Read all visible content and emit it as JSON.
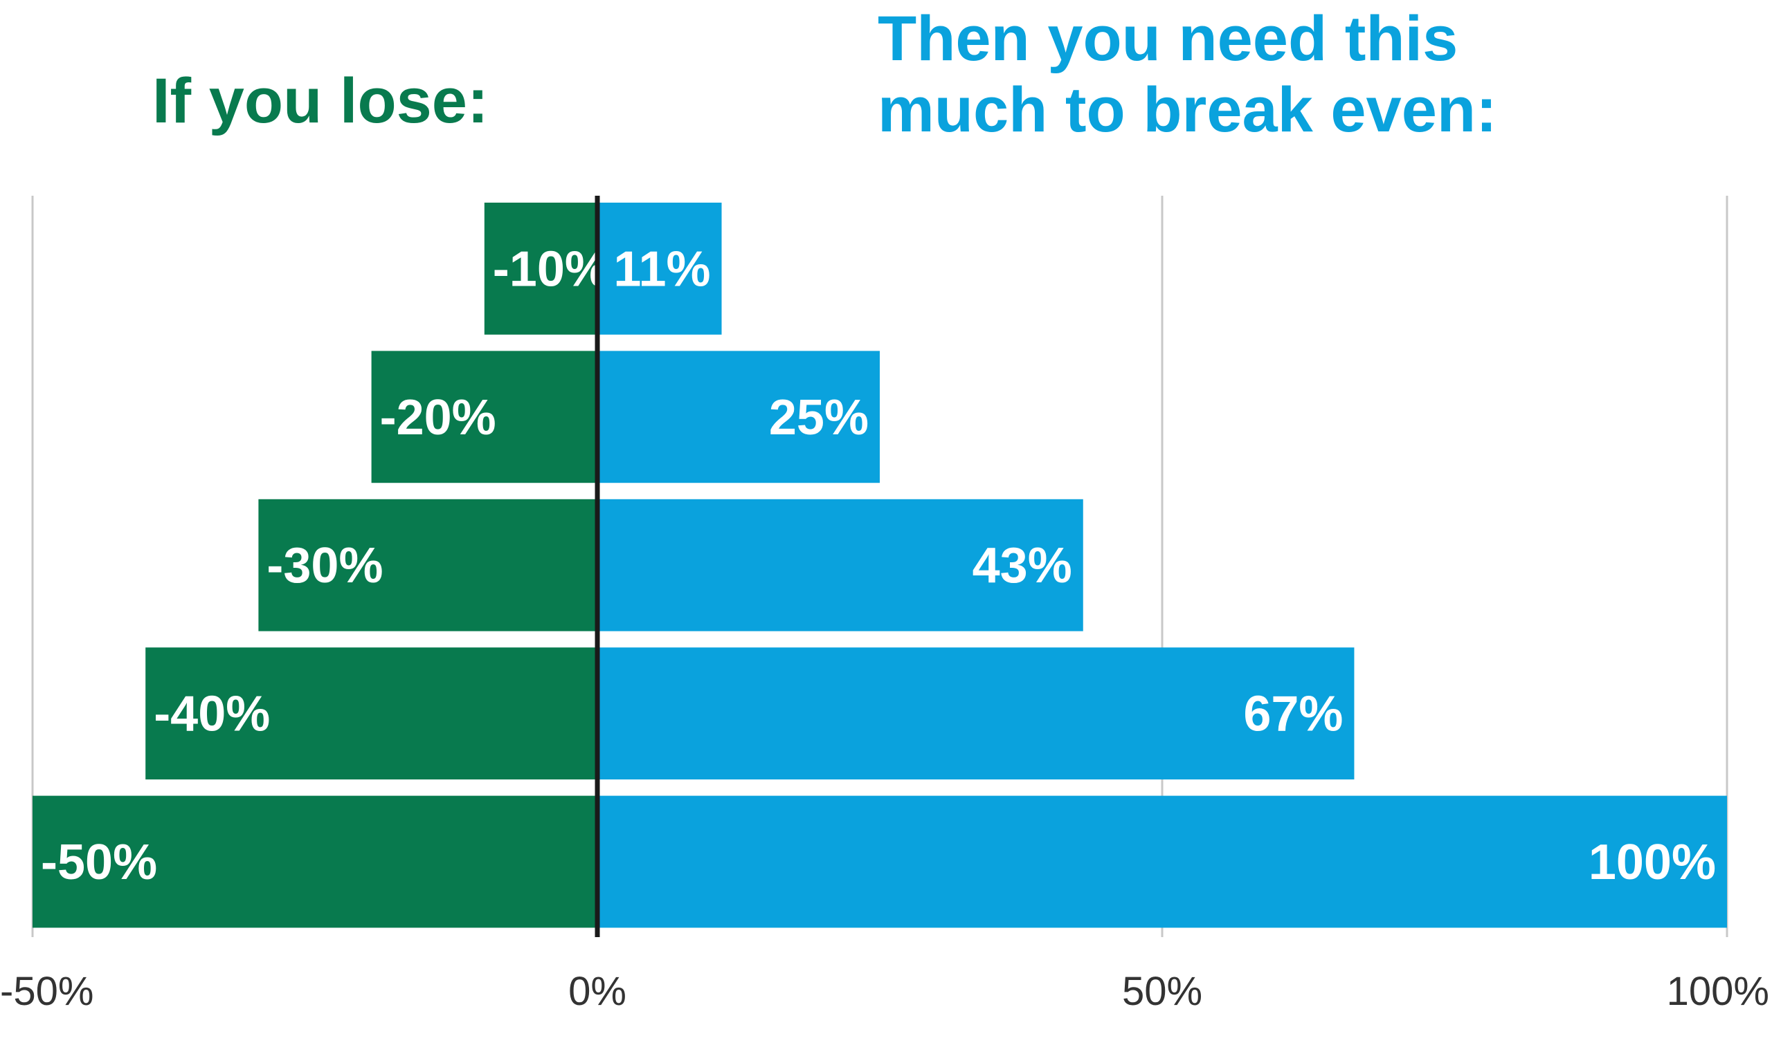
{
  "headers": {
    "left": "If you lose:",
    "right_line1": "Then you need this",
    "right_line2": "much to break even:"
  },
  "colors": {
    "loss": "#087a4e",
    "gain": "#0aa2dd",
    "grid": "#c8c8c8",
    "axis": "#1a1a1a"
  },
  "chart_data": {
    "type": "bar",
    "orientation": "horizontal",
    "categories": [
      "-10%",
      "-20%",
      "-30%",
      "-40%",
      "-50%"
    ],
    "series": [
      {
        "name": "If you lose:",
        "values": [
          -10,
          -20,
          -30,
          -40,
          -50
        ],
        "labels": [
          "-10%",
          "-20%",
          "-30%",
          "-40%",
          "-50%"
        ]
      },
      {
        "name": "Then you need this much to break even:",
        "values": [
          11,
          25,
          43,
          67,
          100
        ],
        "labels": [
          "11%",
          "25%",
          "43%",
          "67%",
          "100%"
        ]
      }
    ],
    "xlim": [
      -50,
      100
    ],
    "xticks": [
      -50,
      0,
      50,
      100
    ],
    "xtick_labels": [
      "-50%",
      "0%",
      "50%",
      "100%"
    ],
    "grid": true,
    "title": "",
    "xlabel": "",
    "ylabel": ""
  }
}
